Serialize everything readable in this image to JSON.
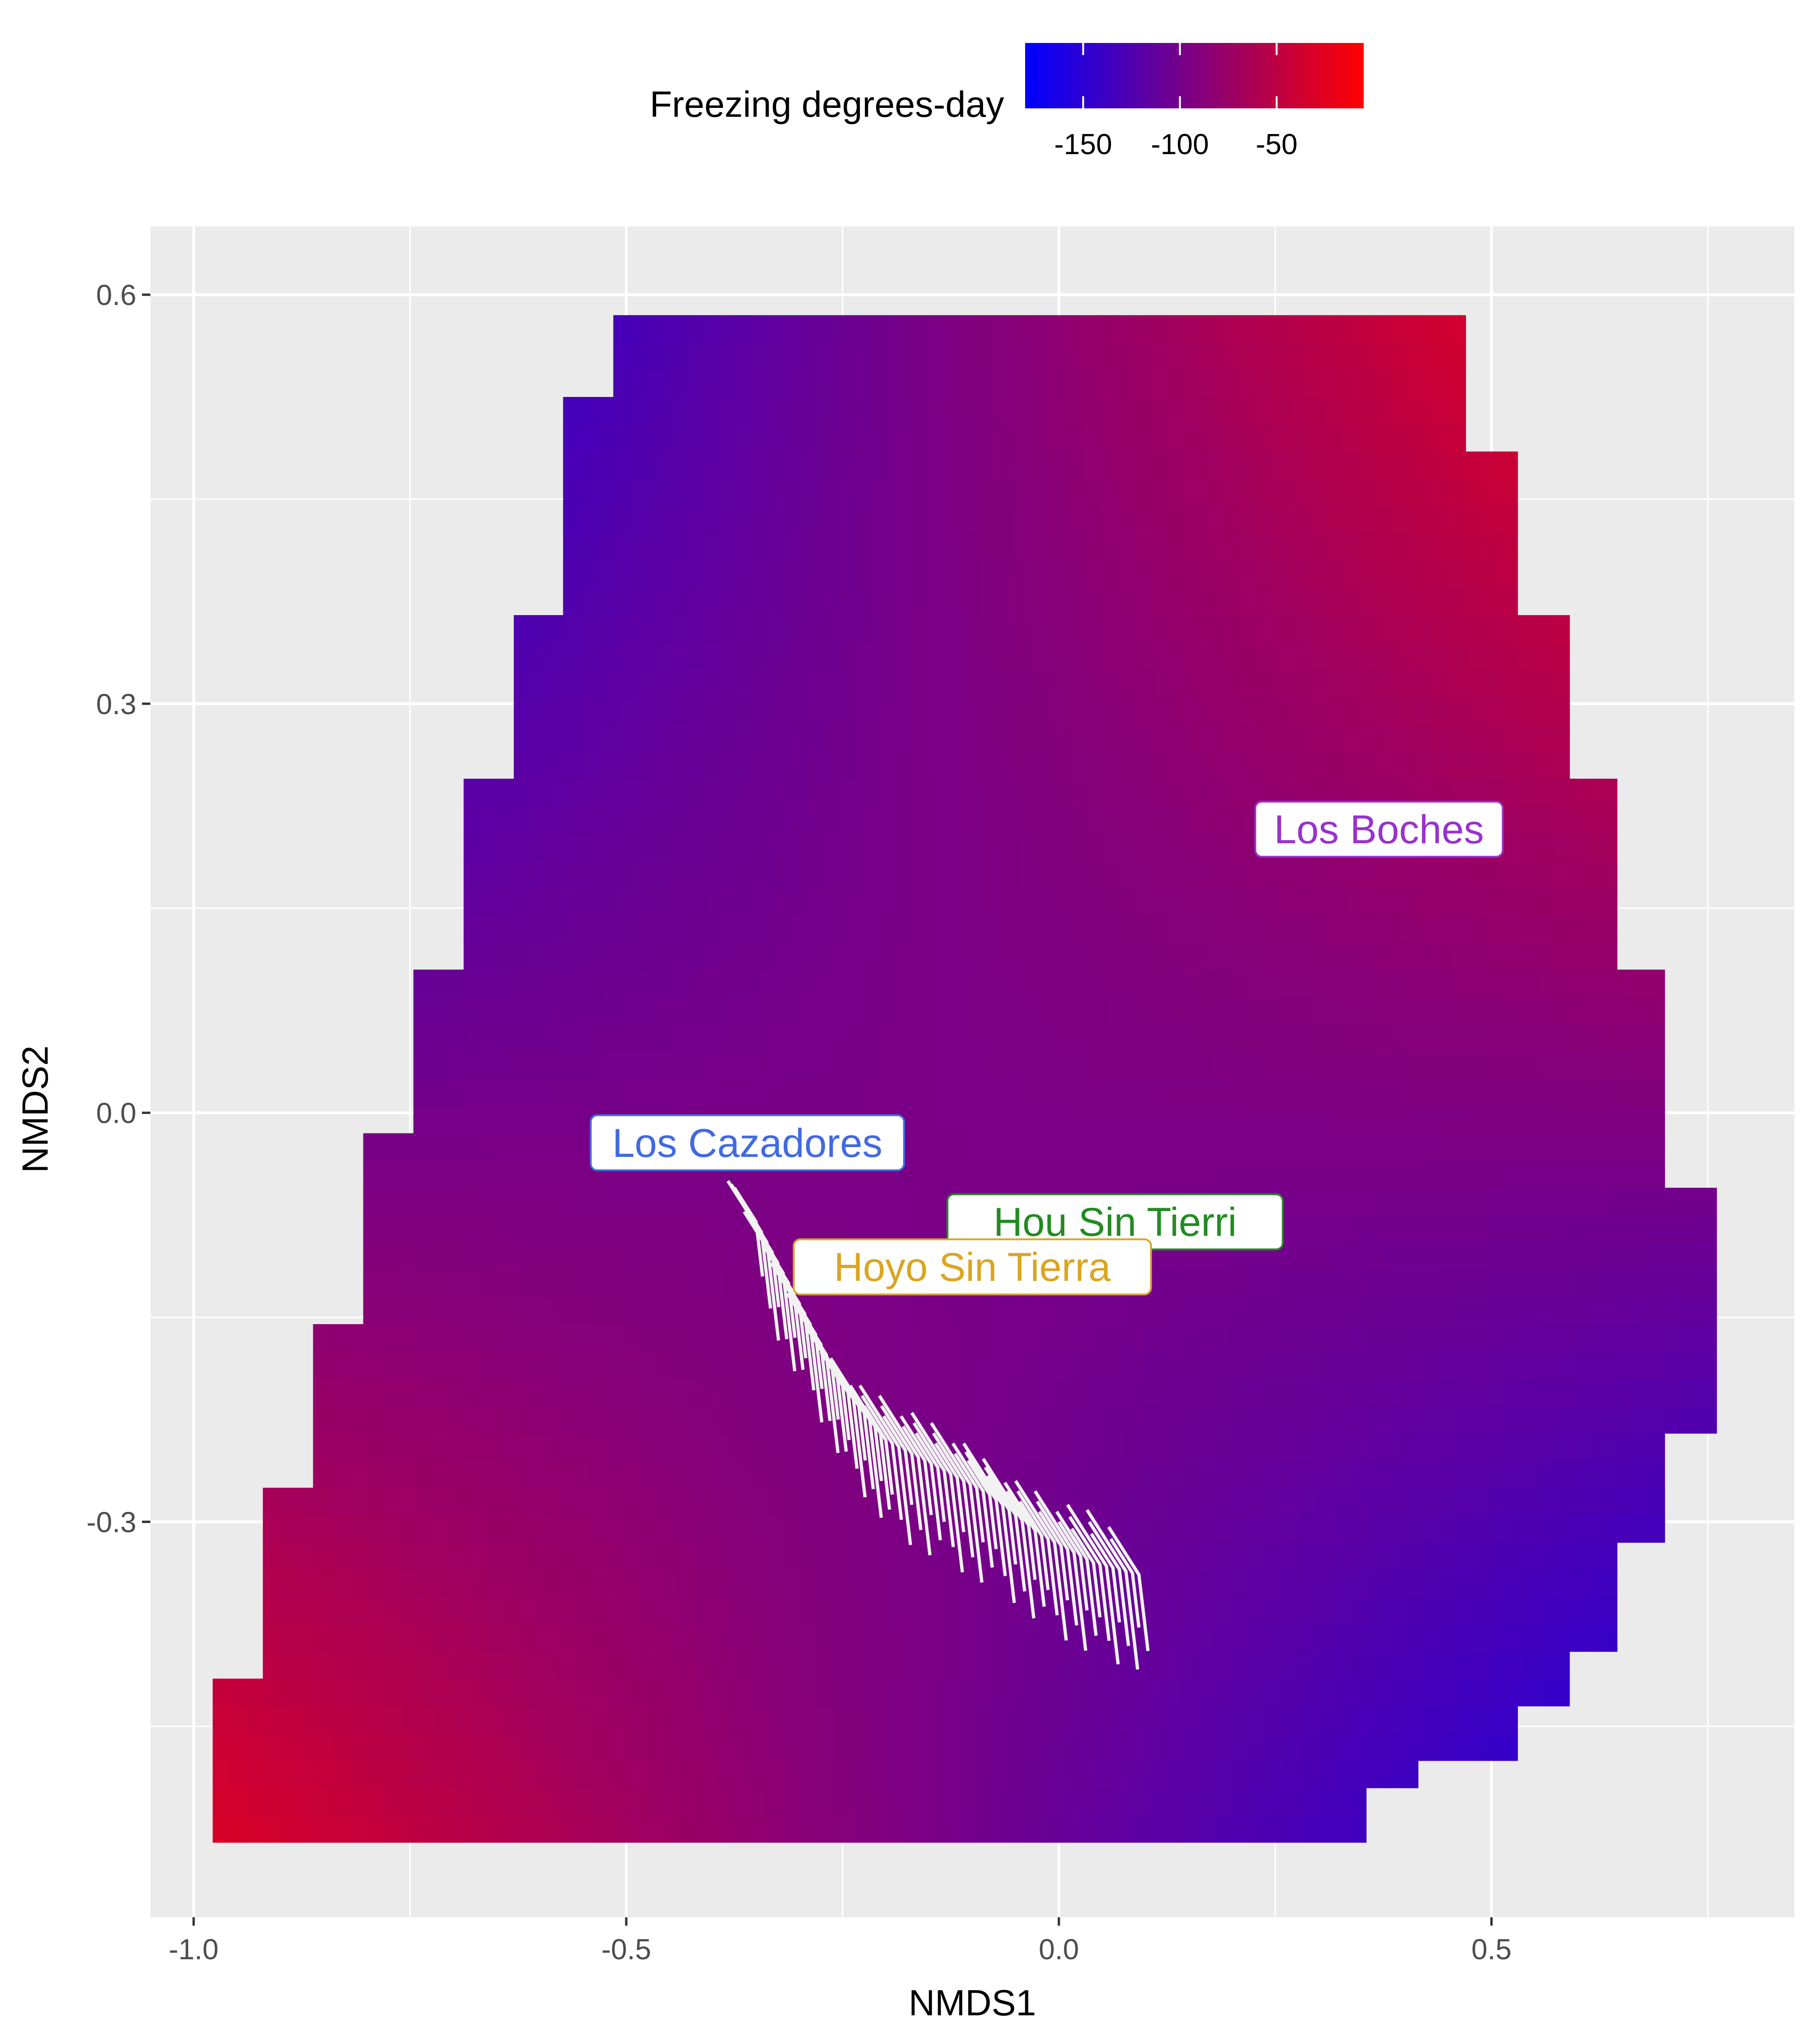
{
  "chart_data": {
    "type": "heatmap",
    "title": "",
    "xlabel": "NMDS1",
    "ylabel": "NMDS2",
    "xlim": [
      -1.05,
      0.85
    ],
    "ylim": [
      -0.59,
      0.65
    ],
    "x_ticks": [
      -1.0,
      -0.5,
      0.0,
      0.5
    ],
    "x_tick_labels": [
      "-1.0",
      "-0.5",
      "0.0",
      "0.5"
    ],
    "y_ticks": [
      -0.3,
      0.0,
      0.3,
      0.6
    ],
    "y_tick_labels": [
      "-0.3",
      "0.0",
      "0.3",
      "0.6"
    ],
    "grid": true,
    "legend": {
      "title": "Freezing degrees-day",
      "position": "top",
      "range": [
        -180,
        -5
      ],
      "ticks": [
        -150,
        -100,
        -50
      ],
      "tick_labels": [
        "-150",
        "-100",
        "-50"
      ],
      "low_color": "#0000FF",
      "high_color": "#FF0000"
    },
    "surface_rows": [
      {
        "y0": 0.475,
        "y1": 0.595,
        "x0": -0.515,
        "x1": 0.47
      },
      {
        "y0": 0.365,
        "y1": 0.518,
        "x0": -0.573,
        "x1": 0.47
      },
      {
        "y0": 0.255,
        "y1": 0.365,
        "x0": -0.63,
        "x1": 0.53
      },
      {
        "y0": 0.1,
        "y1": 0.255,
        "x0": -0.688,
        "x1": 0.59
      },
      {
        "y0": -0.01,
        "y1": 0.1,
        "x0": -0.746,
        "x1": 0.645
      },
      {
        "y0": -0.16,
        "y1": -0.01,
        "x0": -0.804,
        "x1": 0.7
      },
      {
        "y0": -0.275,
        "y1": -0.16,
        "x0": -0.862,
        "x1": 0.76
      },
      {
        "y0": -0.425,
        "y1": -0.275,
        "x0": -0.92,
        "x1": 0.7
      },
      {
        "y0": -0.535,
        "y1": -0.425,
        "x0": -0.978,
        "x1": 0.645
      },
      {
        "y0": -0.535,
        "y1": -0.505,
        "x0": -0.978,
        "x1": 0.53
      }
    ],
    "surface_right_steps": [
      {
        "y0": 0.48,
        "y1": 0.595,
        "x1": 0.47
      },
      {
        "y0": 0.37,
        "y1": 0.48,
        "x1": 0.53
      },
      {
        "y0": 0.255,
        "y1": 0.37,
        "x1": 0.59
      },
      {
        "y0": 0.1,
        "y1": 0.255,
        "x1": 0.645
      },
      {
        "y0": -0.045,
        "y1": 0.1,
        "x1": 0.7
      },
      {
        "y0": -0.235,
        "y1": -0.045,
        "x1": 0.76
      },
      {
        "y0": -0.31,
        "y1": -0.235,
        "x1": 0.7
      },
      {
        "y0": -0.39,
        "y1": -0.31,
        "x1": 0.645
      },
      {
        "y0": -0.425,
        "y1": -0.39,
        "x1": 0.59
      },
      {
        "y0": -0.465,
        "y1": -0.425,
        "x1": 0.53
      },
      {
        "y0": -0.5,
        "y1": -0.465,
        "x1": 0.415
      },
      {
        "y0": -0.535,
        "y1": -0.5,
        "x1": 0.355
      }
    ],
    "surface_left_steps": [
      {
        "y0": 0.52,
        "y1": 0.595,
        "x0": -0.515
      },
      {
        "y0": 0.365,
        "y1": 0.52,
        "x0": -0.573
      },
      {
        "y0": 0.255,
        "y1": 0.365,
        "x0": -0.63
      },
      {
        "y0": 0.1,
        "y1": 0.255,
        "x0": -0.688
      },
      {
        "y0": -0.01,
        "y1": 0.1,
        "x0": -0.746
      },
      {
        "y0": -0.16,
        "y1": -0.01,
        "x0": -0.804
      },
      {
        "y0": -0.275,
        "y1": -0.16,
        "x0": -0.862
      },
      {
        "y0": -0.42,
        "y1": -0.275,
        "x0": -0.92
      },
      {
        "y0": -0.535,
        "y1": -0.42,
        "x0": -0.978
      }
    ],
    "surface_values": {
      "top_left": -180,
      "top_right": -5,
      "bottom_left": -30,
      "bottom_right": -170
    },
    "labels": [
      {
        "text": "Los Boches",
        "x": 0.37,
        "y": 0.208,
        "color": "#9932CC"
      },
      {
        "text": "Los Cazadores",
        "x": -0.36,
        "y": -0.022,
        "color": "#4169E1"
      },
      {
        "text": "Hou Sin Tierri",
        "x": 0.065,
        "y": -0.08,
        "color": "#228B22"
      },
      {
        "text": "Hoyo Sin Tierra",
        "x": -0.1,
        "y": -0.113,
        "color": "#DAA520"
      }
    ]
  }
}
